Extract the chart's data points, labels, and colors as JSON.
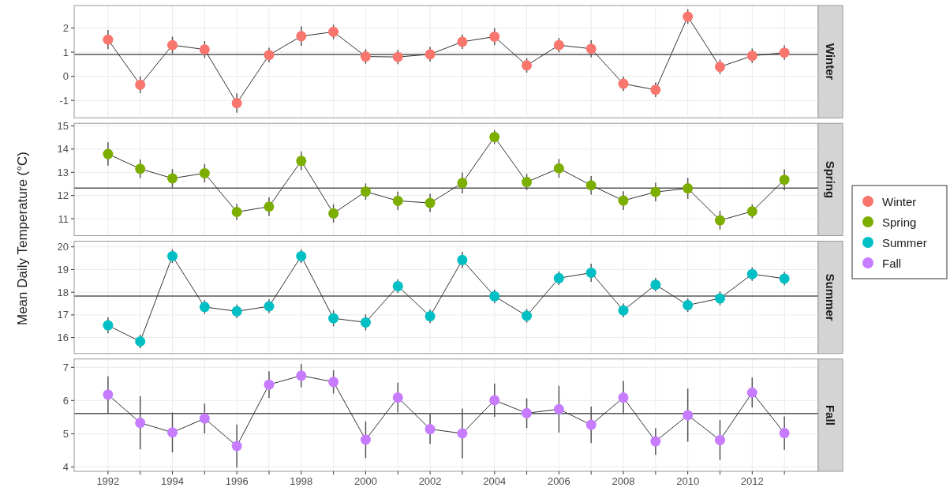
{
  "chart_data": [
    {
      "type": "line",
      "ylabel": "Mean Daily Temperature (°C)",
      "x": [
        1992,
        1993,
        1994,
        1995,
        1996,
        1997,
        1998,
        1999,
        2000,
        2001,
        2002,
        2003,
        2004,
        2005,
        2006,
        2007,
        2008,
        2009,
        2010,
        2011,
        2012,
        2013
      ],
      "xlim": [
        1990.95,
        2014.05
      ],
      "xticks": [
        1992,
        {
          "value": 1993,
          "label": null
        },
        1994,
        {
          "value": 1995,
          "label": null
        },
        1996,
        {
          "value": 1997,
          "label": null
        },
        1998,
        {
          "value": 1999,
          "label": null
        },
        2000,
        {
          "value": 2001,
          "label": null
        },
        2002,
        {
          "value": 2003,
          "label": null
        },
        2004,
        {
          "value": 2005,
          "label": null
        },
        2006,
        {
          "value": 2007,
          "label": null
        },
        2008,
        {
          "value": 2009,
          "label": null
        },
        2010,
        {
          "value": 2011,
          "label": null
        },
        2012,
        {
          "value": 2013,
          "label": null
        }
      ],
      "ylim": [
        -1.72,
        2.93
      ],
      "yticks": [
        -1,
        0,
        1,
        2
      ],
      "grid": true,
      "legend": "right",
      "marker": "circle",
      "tick_labels": "y",
      "series": [
        {
          "name": "Winter",
          "color": "#f8766d",
          "values": [
            1.52,
            -0.35,
            1.29,
            1.11,
            -1.11,
            0.88,
            1.66,
            1.84,
            0.82,
            0.8,
            0.91,
            1.43,
            1.64,
            0.45,
            1.29,
            1.14,
            -0.31,
            -0.56,
            2.47,
            0.39,
            0.85,
            0.98
          ],
          "errors": [
            0.4,
            0.35,
            0.35,
            0.35,
            0.4,
            0.3,
            0.4,
            0.3,
            0.3,
            0.3,
            0.3,
            0.3,
            0.35,
            0.3,
            0.3,
            0.35,
            0.3,
            0.3,
            0.3,
            0.3,
            0.3,
            0.3
          ]
        }
      ],
      "ref_lines": [
        {
          "axis": "y",
          "value": 0.9,
          "color": "#555555"
        }
      ]
    },
    {
      "type": "line",
      "x": [
        1992,
        1993,
        1994,
        1995,
        1996,
        1997,
        1998,
        1999,
        2000,
        2001,
        2002,
        2003,
        2004,
        2005,
        2006,
        2007,
        2008,
        2009,
        2010,
        2011,
        2012,
        2013
      ],
      "xlim": [
        1990.95,
        2014.05
      ],
      "xticks": [
        1992,
        {
          "value": 1993,
          "label": null
        },
        1994,
        {
          "value": 1995,
          "label": null
        },
        1996,
        {
          "value": 1997,
          "label": null
        },
        1998,
        {
          "value": 1999,
          "label": null
        },
        2000,
        {
          "value": 2001,
          "label": null
        },
        2002,
        {
          "value": 2003,
          "label": null
        },
        2004,
        {
          "value": 2005,
          "label": null
        },
        2006,
        {
          "value": 2007,
          "label": null
        },
        2008,
        {
          "value": 2009,
          "label": null
        },
        2010,
        {
          "value": 2011,
          "label": null
        },
        2012,
        {
          "value": 2013,
          "label": null
        }
      ],
      "ylim": [
        10.27,
        15.11
      ],
      "yticks": [
        11,
        12,
        13,
        14,
        15
      ],
      "grid": true,
      "legend": "right",
      "marker": "circle",
      "tick_labels": "y",
      "series": [
        {
          "name": "Spring",
          "color": "#7cae00",
          "values": [
            13.79,
            13.15,
            12.74,
            12.96,
            11.29,
            11.52,
            13.49,
            11.23,
            12.17,
            11.77,
            11.68,
            12.54,
            14.52,
            12.58,
            13.17,
            12.44,
            11.78,
            12.15,
            12.31,
            10.93,
            11.32,
            12.68
          ],
          "errors": [
            0.5,
            0.4,
            0.4,
            0.4,
            0.35,
            0.4,
            0.4,
            0.4,
            0.35,
            0.4,
            0.4,
            0.45,
            0.3,
            0.35,
            0.4,
            0.4,
            0.4,
            0.4,
            0.45,
            0.4,
            0.3,
            0.45
          ]
        }
      ],
      "ref_lines": [
        {
          "axis": "y",
          "value": 12.32,
          "color": "#555555"
        }
      ]
    },
    {
      "type": "line",
      "x": [
        1992,
        1993,
        1994,
        1995,
        1996,
        1997,
        1998,
        1999,
        2000,
        2001,
        2002,
        2003,
        2004,
        2005,
        2006,
        2007,
        2008,
        2009,
        2010,
        2011,
        2012,
        2013
      ],
      "xlim": [
        1990.95,
        2014.05
      ],
      "xticks": [
        1992,
        {
          "value": 1993,
          "label": null
        },
        1994,
        {
          "value": 1995,
          "label": null
        },
        1996,
        {
          "value": 1997,
          "label": null
        },
        1998,
        {
          "value": 1999,
          "label": null
        },
        2000,
        {
          "value": 2001,
          "label": null
        },
        2002,
        {
          "value": 2003,
          "label": null
        },
        2004,
        {
          "value": 2005,
          "label": null
        },
        2006,
        {
          "value": 2007,
          "label": null
        },
        2008,
        {
          "value": 2009,
          "label": null
        },
        2010,
        {
          "value": 2011,
          "label": null
        },
        2012,
        {
          "value": 2013,
          "label": null
        }
      ],
      "ylim": [
        15.3,
        20.25
      ],
      "yticks": [
        16,
        17,
        18,
        19,
        20
      ],
      "grid": true,
      "legend": "right",
      "marker": "circle",
      "tick_labels": "y",
      "series": [
        {
          "name": "Summer",
          "color": "#00bfc4",
          "values": [
            16.54,
            15.83,
            19.59,
            17.35,
            17.16,
            17.38,
            19.59,
            16.85,
            16.67,
            18.27,
            16.94,
            19.42,
            17.82,
            16.96,
            18.62,
            18.86,
            17.2,
            18.33,
            17.43,
            17.73,
            18.8,
            18.6
          ],
          "errors": [
            0.35,
            0.3,
            0.3,
            0.3,
            0.3,
            0.3,
            0.3,
            0.35,
            0.35,
            0.3,
            0.3,
            0.35,
            0.3,
            0.3,
            0.3,
            0.4,
            0.3,
            0.3,
            0.3,
            0.3,
            0.3,
            0.3
          ]
        }
      ],
      "ref_lines": [
        {
          "axis": "y",
          "value": 17.83,
          "color": "#555555"
        }
      ]
    },
    {
      "type": "line",
      "x": [
        1992,
        1993,
        1994,
        1995,
        1996,
        1997,
        1998,
        1999,
        2000,
        2001,
        2002,
        2003,
        2004,
        2005,
        2006,
        2007,
        2008,
        2009,
        2010,
        2011,
        2012,
        2013
      ],
      "xlim": [
        1990.95,
        2014.05
      ],
      "xticks": [
        1992,
        {
          "value": 1993,
          "label": null
        },
        1994,
        {
          "value": 1995,
          "label": null
        },
        1996,
        {
          "value": 1997,
          "label": null
        },
        1998,
        {
          "value": 1999,
          "label": null
        },
        2000,
        {
          "value": 2001,
          "label": null
        },
        2002,
        {
          "value": 2003,
          "label": null
        },
        2004,
        {
          "value": 2005,
          "label": null
        },
        2006,
        {
          "value": 2007,
          "label": null
        },
        2008,
        {
          "value": 2009,
          "label": null
        },
        2010,
        {
          "value": 2011,
          "label": null
        },
        2012,
        {
          "value": 2013,
          "label": null
        }
      ],
      "ylim": [
        3.87,
        7.25
      ],
      "yticks": [
        4,
        5,
        6,
        7
      ],
      "grid": true,
      "legend": "right",
      "marker": "circle",
      "series": [
        {
          "name": "Fall",
          "color": "#c77cff",
          "values": [
            6.18,
            5.33,
            5.04,
            5.46,
            4.63,
            6.48,
            6.75,
            6.56,
            4.82,
            6.09,
            5.14,
            5.01,
            6.01,
            5.62,
            5.74,
            5.27,
            6.09,
            4.77,
            5.56,
            4.81,
            6.24,
            5.02
          ],
          "errors": [
            0.55,
            0.8,
            0.6,
            0.45,
            0.65,
            0.4,
            0.35,
            0.35,
            0.55,
            0.45,
            0.45,
            0.75,
            0.5,
            0.45,
            0.7,
            0.55,
            0.5,
            0.4,
            0.8,
            0.6,
            0.45,
            0.5
          ]
        }
      ],
      "ref_lines": [
        {
          "axis": "y",
          "value": 5.61,
          "color": "#555555"
        }
      ]
    }
  ]
}
